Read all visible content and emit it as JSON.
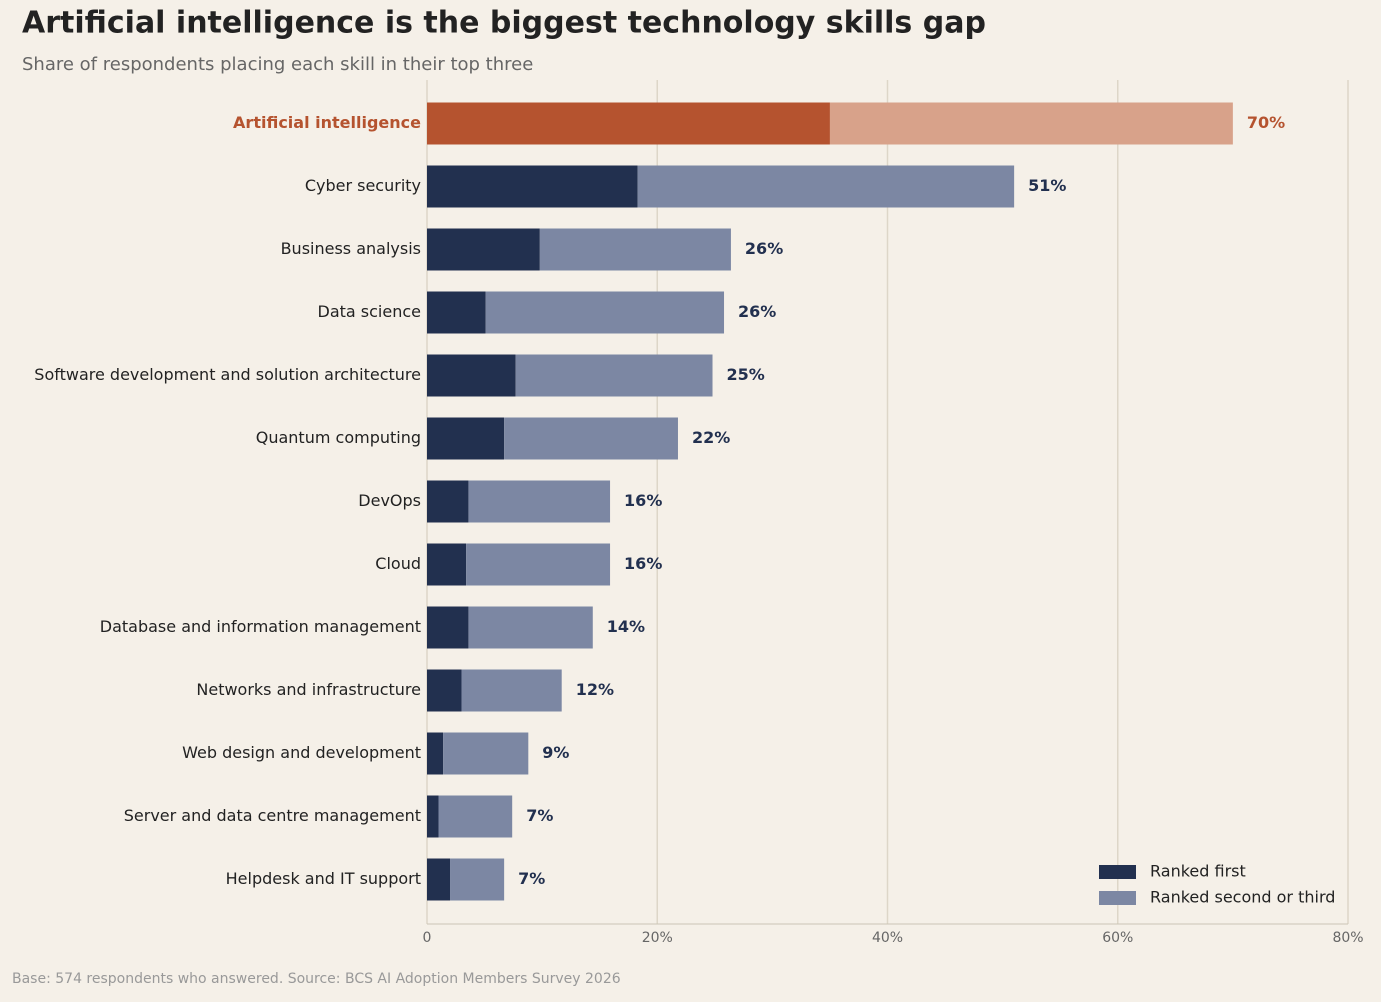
{
  "chart_data": {
    "type": "stacked-bar-horizontal",
    "title": "Artificial intelligence is the biggest technology skills gap",
    "subtitle": "Share of respondents placing each skill in their top three",
    "footnote": "Base: 574 respondents who answered. Source: BCS AI Adoption Members Survey 2026",
    "categories": [
      "Artificial intelligence",
      "Cyber security",
      "Business analysis",
      "Data science",
      "Software development and solution architecture",
      "Quantum computing",
      "DevOps",
      "Cloud",
      "Database and information management",
      "Networks and infrastructure",
      "Web design and development",
      "Server and data centre management",
      "Helpdesk and IT support"
    ],
    "series": [
      {
        "name": "Ranked first",
        "color": "#22304f",
        "highlight_color": "#b5532f",
        "values": [
          35,
          18.3,
          9.8,
          5.1,
          7.7,
          6.7,
          3.6,
          3.4,
          3.6,
          3.0,
          1.4,
          1.0,
          2.0
        ]
      },
      {
        "name": "Ranked second or third",
        "color": "#7c87a3",
        "highlight_color": "#d8a28a",
        "values": [
          35,
          32.7,
          16.6,
          20.7,
          17.1,
          15.1,
          12.3,
          12.5,
          10.8,
          8.7,
          7.4,
          6.4,
          4.7
        ]
      }
    ],
    "value_labels": [
      "70%",
      "51%",
      "26%",
      "26%",
      "25%",
      "22%",
      "16%",
      "16%",
      "14%",
      "12%",
      "9%",
      "7%",
      "7%"
    ],
    "highlight_category": "Artificial intelligence",
    "highlight_text_color": "#b5532f",
    "text_color": "#22304f",
    "xlim": [
      0,
      80
    ],
    "xticks": [
      0,
      {
        "value": 20,
        "label": "20%"
      },
      {
        "value": 40,
        "label": "40%"
      },
      {
        "value": 60,
        "label": "60%"
      },
      {
        "value": 80,
        "label": "80%"
      }
    ],
    "grid": true,
    "legend": "bottom-right"
  }
}
